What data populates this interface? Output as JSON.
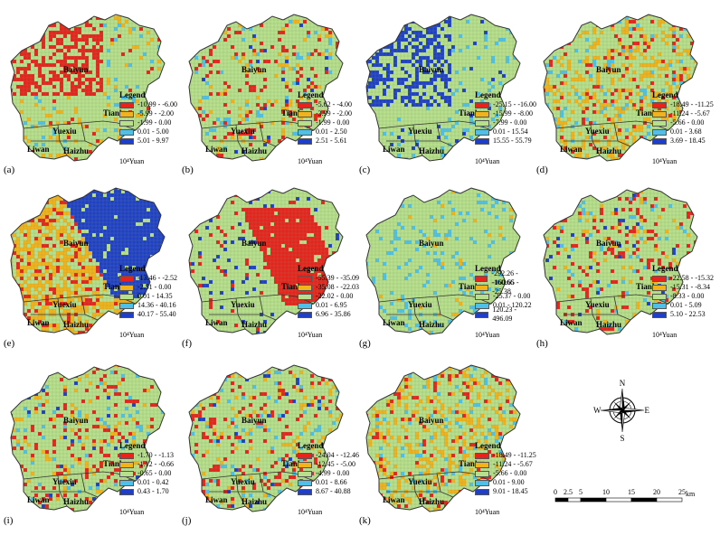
{
  "panels": [
    {
      "id": "a",
      "label": "(a)",
      "unit": "10⁴Yuan",
      "legend_title": "Legend",
      "classes": [
        {
          "range": "-10.99 - -6.00",
          "color": "#e8231d"
        },
        {
          "range": "-5.99 - -2.00",
          "color": "#f2b21a"
        },
        {
          "range": "-1.99 - 0.00",
          "color": "#b8e08c"
        },
        {
          "range": "0.01 - 5.00",
          "color": "#4fc1e8"
        },
        {
          "range": "5.01 - 9.97",
          "color": "#1f3fc8"
        }
      ],
      "scheme": "nw-red"
    },
    {
      "id": "b",
      "label": "(b)",
      "unit": "10⁴Yuan",
      "legend_title": "Legend",
      "classes": [
        {
          "range": "-5.62 - -4.00",
          "color": "#e8231d"
        },
        {
          "range": "-3.99 - -2.00",
          "color": "#f2b21a"
        },
        {
          "range": "-1.99 - 0.00",
          "color": "#b8e08c"
        },
        {
          "range": "0.01 - 2.50",
          "color": "#4fc1e8"
        },
        {
          "range": "2.51 - 5.61",
          "color": "#1f3fc8"
        }
      ],
      "scheme": "scatter"
    },
    {
      "id": "c",
      "label": "(c)",
      "unit": "10⁴Yuan",
      "legend_title": "Legend",
      "classes": [
        {
          "range": "-25.15 - -16.00",
          "color": "#e8231d"
        },
        {
          "range": "-15.99 - -8.00",
          "color": "#f2b21a"
        },
        {
          "range": "-7.99 - 0.00",
          "color": "#b8e08c"
        },
        {
          "range": "0.01 - 15.54",
          "color": "#4fc1e8"
        },
        {
          "range": "15.55 - 55.79",
          "color": "#1f3fc8"
        }
      ],
      "scheme": "nw-blue"
    },
    {
      "id": "d",
      "label": "(d)",
      "unit": "10⁴Yuan",
      "legend_title": "Legend",
      "classes": [
        {
          "range": "-18.49 - -11.25",
          "color": "#e8231d"
        },
        {
          "range": "-11.24 - -5.67",
          "color": "#f2b21a"
        },
        {
          "range": "-5.66 - 0.00",
          "color": "#b8e08c"
        },
        {
          "range": "0.01 - 3.68",
          "color": "#4fc1e8"
        },
        {
          "range": "3.69 - 18.45",
          "color": "#1f3fc8"
        }
      ],
      "scheme": "orange"
    },
    {
      "id": "e",
      "label": "(e)",
      "unit": "10⁴Yuan",
      "legend_title": "Legend",
      "classes": [
        {
          "range": "-13.46 - -2.52",
          "color": "#e8231d"
        },
        {
          "range": "-2.51 - 0.00",
          "color": "#f2b21a"
        },
        {
          "range": "0.01 - 14.35",
          "color": "#b8e08c"
        },
        {
          "range": "14.36 - 40.16",
          "color": "#4fc1e8"
        },
        {
          "range": "40.17 - 55.40",
          "color": "#1f3fc8"
        }
      ],
      "scheme": "east-blue"
    },
    {
      "id": "f",
      "label": "(f)",
      "unit": "10⁴Yuan",
      "legend_title": "Legend",
      "classes": [
        {
          "range": "-55.39 - -35.09",
          "color": "#e8231d"
        },
        {
          "range": "-35.08 - -22.03",
          "color": "#f2b21a"
        },
        {
          "range": "-22.02 - 0.00",
          "color": "#b8e08c"
        },
        {
          "range": "0.01 - 6.95",
          "color": "#4fc1e8"
        },
        {
          "range": "6.96 - 35.86",
          "color": "#1f3fc8"
        }
      ],
      "scheme": "east-red"
    },
    {
      "id": "g",
      "label": "(g)",
      "unit": "10⁴Yuan",
      "legend_title": "Legend",
      "classes": [
        {
          "range": "-292.26 - -160.66",
          "color": "#e8231d"
        },
        {
          "range": "-160.65 - -25.38",
          "color": "#f2b21a"
        },
        {
          "range": "-25.37 - 0.00",
          "color": "#b8e08c"
        },
        {
          "range": "0.01 - 120.22",
          "color": "#4fc1e8"
        },
        {
          "range": "120.23 - 496.09",
          "color": "#1f3fc8"
        }
      ],
      "scheme": "light"
    },
    {
      "id": "h",
      "label": "(h)",
      "unit": "10⁴Yuan",
      "legend_title": "Legend",
      "classes": [
        {
          "range": "-22.58 - -15.32",
          "color": "#e8231d"
        },
        {
          "range": "-15.31 - -8.34",
          "color": "#f2b21a"
        },
        {
          "range": "-8.33 - 0.00",
          "color": "#b8e08c"
        },
        {
          "range": "0.01 - 5.09",
          "color": "#4fc1e8"
        },
        {
          "range": "5.10 - 22.53",
          "color": "#1f3fc8"
        }
      ],
      "scheme": "scatter"
    },
    {
      "id": "i",
      "label": "(i)",
      "unit": "10⁴Yuan",
      "legend_title": "Legend",
      "classes": [
        {
          "range": "-1.70 - -1.13",
          "color": "#e8231d"
        },
        {
          "range": "-1.12 - -0.66",
          "color": "#f2b21a"
        },
        {
          "range": "-0.65 - 0.00",
          "color": "#b8e08c"
        },
        {
          "range": "0.01 - 0.42",
          "color": "#4fc1e8"
        },
        {
          "range": "0.43 - 1.70",
          "color": "#1f3fc8"
        }
      ],
      "scheme": "scatter"
    },
    {
      "id": "j",
      "label": "(j)",
      "unit": "10⁴Yuan",
      "legend_title": "Legend",
      "classes": [
        {
          "range": "-24.04 - -12.46",
          "color": "#e8231d"
        },
        {
          "range": "-12.45 - -5.00",
          "color": "#f2b21a"
        },
        {
          "range": "-4.99 - 0.00",
          "color": "#b8e08c"
        },
        {
          "range": "0.01 - 8.66",
          "color": "#4fc1e8"
        },
        {
          "range": "8.67 - 40.88",
          "color": "#1f3fc8"
        }
      ],
      "scheme": "scatter"
    },
    {
      "id": "k",
      "label": "(k)",
      "unit": "10⁴Yuan",
      "legend_title": "Legend",
      "classes": [
        {
          "range": "-18.49 - -11.25",
          "color": "#e8231d"
        },
        {
          "range": "-11.24 - -5.67",
          "color": "#f2b21a"
        },
        {
          "range": "-5.66 - 0.00",
          "color": "#b8e08c"
        },
        {
          "range": "0.01 - 9.00",
          "color": "#4fc1e8"
        },
        {
          "range": "9.01 - 18.45",
          "color": "#1f3fc8"
        }
      ],
      "scheme": "orange"
    }
  ],
  "districts": {
    "baiyun": "Baiyun",
    "tianhe": "Tianhe",
    "yuexiu": "Yuexiu",
    "liwan": "Liwan",
    "haizhu": "Haizhu"
  },
  "compass": {
    "n": "N",
    "s": "S",
    "e": "E",
    "w": "W"
  },
  "scale": {
    "ticks": [
      "0",
      "2.5",
      "5",
      "10",
      "15",
      "20",
      "25"
    ],
    "unit": "km"
  }
}
